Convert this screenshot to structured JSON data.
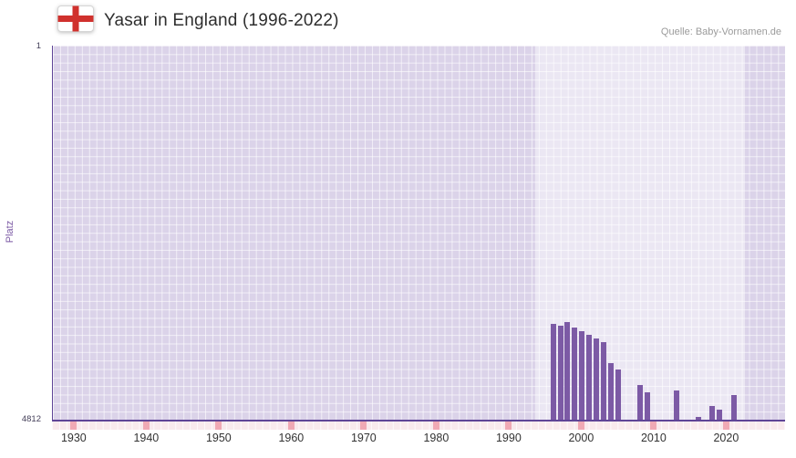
{
  "header": {
    "title": "Yasar in England (1996-2022)",
    "source": "Quelle: Baby-Vornamen.de",
    "flag_icon": "england-flag-icon"
  },
  "axes": {
    "y_label": "Platz",
    "y_top_tick": "1",
    "y_bottom_tick": "4812",
    "x_ticks": [
      1930,
      1940,
      1950,
      1960,
      1970,
      1980,
      1990,
      2000,
      2010,
      2020
    ]
  },
  "colors": {
    "bar": "#7c5aa5",
    "plot_background": "#dbd3e9",
    "grid": "#ffffff",
    "highlight_band": "rgba(255,255,255,0.45)",
    "axis_line": "#5f4597",
    "strip_background": "#f9eaed",
    "strip_tick": "#f0a9b4",
    "flag_cross_red": "#d0312d",
    "y_label_color": "#7c5aa5",
    "title_color": "#2e2e2e",
    "source_color": "#9b9b9b"
  },
  "chart_data": {
    "type": "bar",
    "title": "Yasar in England (1996-2022)",
    "xlabel": "",
    "ylabel": "Platz",
    "ylim": [
      1,
      4812
    ],
    "y_axis_inverted": true,
    "x_domain": [
      1927,
      2028
    ],
    "band_range": [
      1993.5,
      2022.5
    ],
    "x_ticks": [
      1930,
      1940,
      1950,
      1960,
      1970,
      1980,
      1990,
      2000,
      2010,
      2020
    ],
    "grid": true,
    "legend": false,
    "years": [
      1996,
      1997,
      1998,
      1999,
      2000,
      2001,
      2002,
      2003,
      2004,
      2005,
      2006,
      2007,
      2008,
      2009,
      2010,
      2011,
      2012,
      2013,
      2014,
      2015,
      2016,
      2017,
      2018,
      2019,
      2020,
      2021,
      2022
    ],
    "ranks": [
      3570,
      3600,
      3550,
      3620,
      3670,
      3710,
      3760,
      3810,
      4080,
      4160,
      null,
      null,
      4360,
      4450,
      null,
      null,
      null,
      4430,
      null,
      null,
      4770,
      null,
      4620,
      4670,
      null,
      4480,
      null
    ]
  }
}
